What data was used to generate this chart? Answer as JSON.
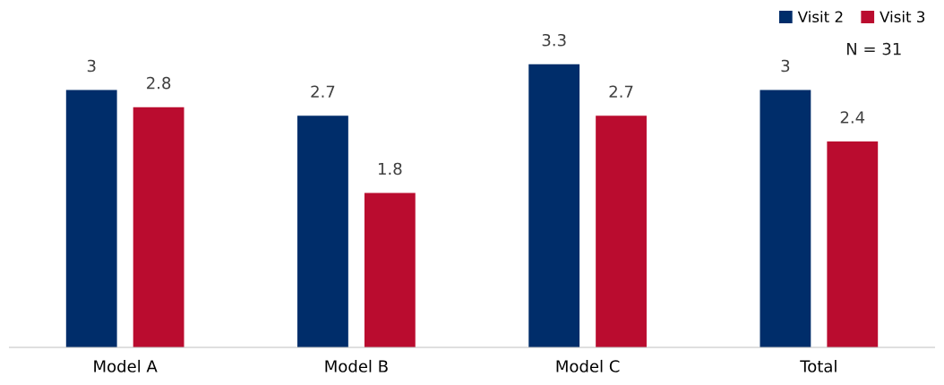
{
  "chart_data": {
    "type": "bar",
    "categories": [
      "Model A",
      "Model B",
      "Model C",
      "Total"
    ],
    "series": [
      {
        "name": "Visit 2",
        "color": "#002d6a",
        "values": [
          3,
          2.7,
          3.3,
          3
        ]
      },
      {
        "name": "Visit 3",
        "color": "#ba0c2f",
        "values": [
          2.8,
          1.8,
          2.7,
          2.4
        ]
      }
    ],
    "data_labels": true,
    "legend": "top right",
    "annotations": [
      "N = 31"
    ]
  }
}
